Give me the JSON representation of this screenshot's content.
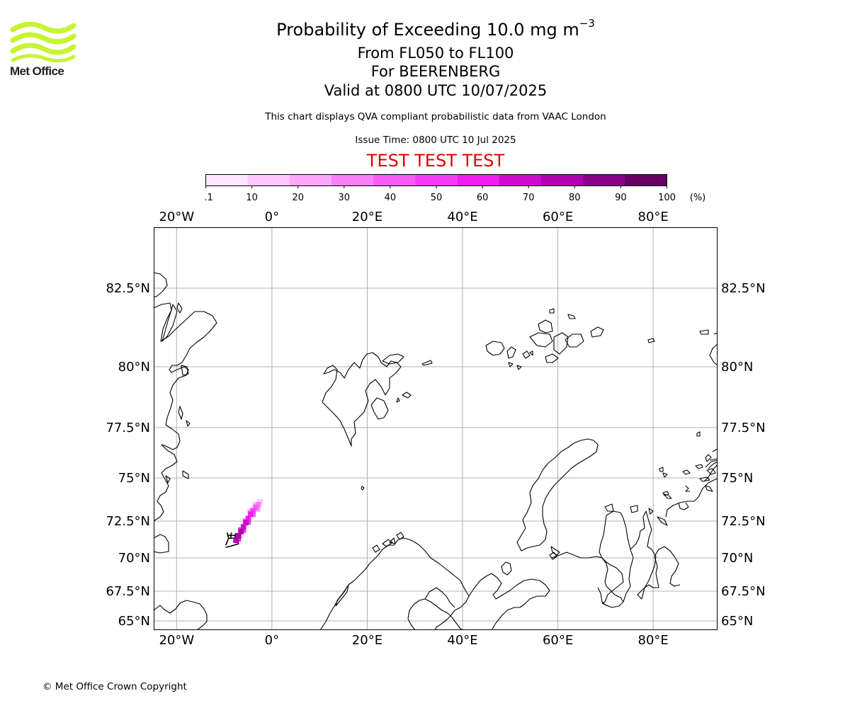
{
  "logo": {
    "icon": "met-office-wave-logo",
    "text": "Met Office",
    "color": "#c6f432"
  },
  "header": {
    "title_prefix": "Probability of Exceeding 10.0 mg m",
    "title_exponent": "−3",
    "level_range": "From FL050 to FL100",
    "volcano": "For BEERENBERG",
    "valid_time": "Valid at 0800 UTC 10/07/2025",
    "disclaimer": "This chart displays QVA compliant probabilistic data from VAAC London",
    "issue_time": "Issue Time: 0800 UTC 10 Jul 2025",
    "test_banner": "TEST TEST TEST"
  },
  "colorbar": {
    "ticks": [
      "0.1",
      "10",
      "20",
      "30",
      "40",
      "50",
      "60",
      "70",
      "80",
      "90",
      "100"
    ],
    "unit": "(%)",
    "colors": [
      "#ffe6ff",
      "#fdc8fd",
      "#fba6fb",
      "#f97ef9",
      "#f75cf7",
      "#f53cf5",
      "#f01ef0",
      "#cf0acf",
      "#b000b0",
      "#8a008a",
      "#660066"
    ]
  },
  "chart_data": {
    "type": "map",
    "lon_range": [
      -24.8,
      93.5
    ],
    "lon_ticks": [
      {
        "value": -20,
        "label": "20°W"
      },
      {
        "value": 0,
        "label": "0°"
      },
      {
        "value": 20,
        "label": "20°E"
      },
      {
        "value": 40,
        "label": "40°E"
      },
      {
        "value": 60,
        "label": "60°E"
      },
      {
        "value": 80,
        "label": "80°E"
      }
    ],
    "lat_ticks": [
      {
        "value": 82.5,
        "label": "82.5°N"
      },
      {
        "value": 80,
        "label": "80°N"
      },
      {
        "value": 77.5,
        "label": "77.5°N"
      },
      {
        "value": 75,
        "label": "75°N"
      },
      {
        "value": 72.5,
        "label": "72.5°N"
      },
      {
        "value": 70,
        "label": "70°N"
      },
      {
        "value": 67.5,
        "label": "67.5°N"
      },
      {
        "value": 65,
        "label": "65°N"
      }
    ],
    "grid": true,
    "volcano": {
      "name": "BEERENBERG",
      "lon": -8.2,
      "lat": 71.1
    },
    "plume_cells": [
      {
        "lon": -7.6,
        "lat": 71.2,
        "prob": 85
      },
      {
        "lon": -7.0,
        "lat": 71.5,
        "prob": 80
      },
      {
        "lon": -6.5,
        "lat": 71.8,
        "prob": 80
      },
      {
        "lon": -6.0,
        "lat": 72.1,
        "prob": 75
      },
      {
        "lon": -5.5,
        "lat": 72.4,
        "prob": 72
      },
      {
        "lon": -5.0,
        "lat": 72.65,
        "prob": 68
      },
      {
        "lon": -4.5,
        "lat": 72.9,
        "prob": 62
      },
      {
        "lon": -4.0,
        "lat": 73.1,
        "prob": 55
      },
      {
        "lon": -3.4,
        "lat": 73.3,
        "prob": 45
      },
      {
        "lon": -2.9,
        "lat": 73.45,
        "prob": 30
      },
      {
        "lon": -2.5,
        "lat": 73.6,
        "prob": 15
      },
      {
        "lon": -7.1,
        "lat": 71.3,
        "prob": 60
      },
      {
        "lon": -6.0,
        "lat": 71.9,
        "prob": 55
      },
      {
        "lon": -5.0,
        "lat": 72.45,
        "prob": 50
      },
      {
        "lon": -4.0,
        "lat": 72.9,
        "prob": 40
      },
      {
        "lon": -3.0,
        "lat": 73.2,
        "prob": 25
      },
      {
        "lon": -6.6,
        "lat": 71.9,
        "prob": 40
      },
      {
        "lon": -5.6,
        "lat": 72.5,
        "prob": 35
      },
      {
        "lon": -4.6,
        "lat": 73.05,
        "prob": 28
      },
      {
        "lon": -3.6,
        "lat": 73.45,
        "prob": 18
      }
    ]
  },
  "footer": {
    "copyright": "© Met Office Crown Copyright"
  }
}
